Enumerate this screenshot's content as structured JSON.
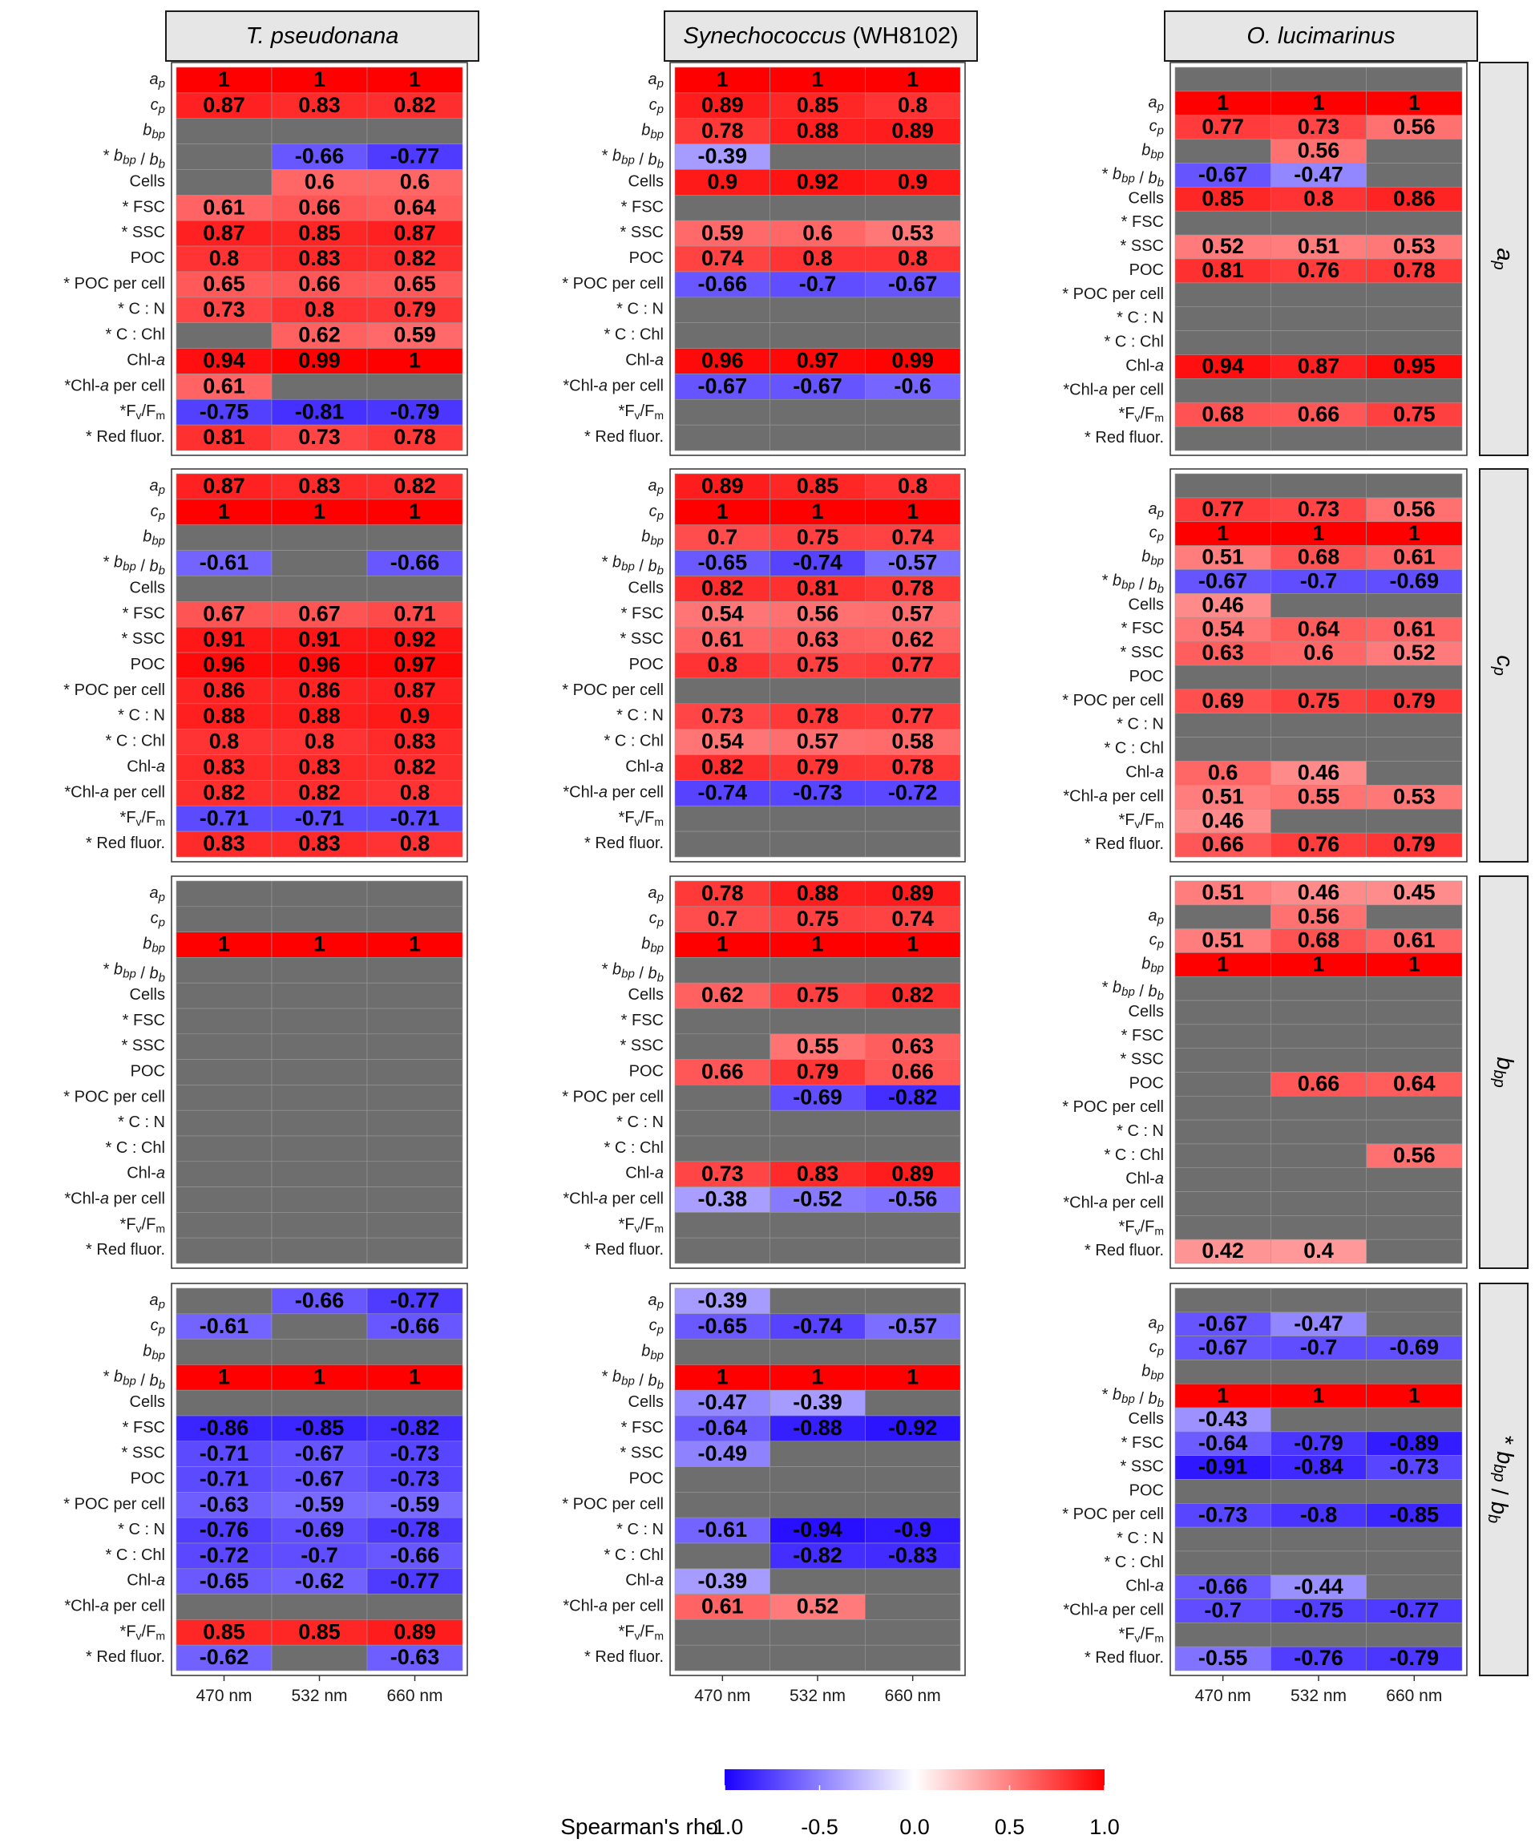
{
  "chart_data": {
    "type": "heatmap",
    "title": "",
    "x_categories": [
      "470 nm",
      "532 nm",
      "660 nm"
    ],
    "columns": [
      {
        "key": "tp",
        "label": "T. pseudonana",
        "italic": true,
        "suffix": ""
      },
      {
        "key": "syn",
        "label": "Synechococcus",
        "italic": true,
        "suffix": "(WH8102)"
      },
      {
        "key": "ol",
        "label": "O. lucimarinus",
        "italic": true,
        "suffix": ""
      }
    ],
    "row_facets": [
      {
        "key": "ap",
        "label": "a_p"
      },
      {
        "key": "cp",
        "label": "c_p"
      },
      {
        "key": "bbp",
        "label": "b_bp"
      },
      {
        "key": "ratio",
        "label": "* b_bp / b_b"
      }
    ],
    "row_labels": [
      "a_p",
      "c_p",
      "b_bp",
      "* b_bp / b_b",
      "Cells",
      "* FSC",
      "* SSC",
      "POC",
      "* POC per cell",
      "* C : N",
      "* C : Chl",
      "Chl-a",
      "*Chl-a per cell",
      "*Fv/Fm",
      "* Red fluor."
    ],
    "ol_row_labels": [
      "",
      "a_p",
      "c_p",
      "b_bp",
      "* b_bp / b_b",
      "Cells",
      "* FSC",
      "* SSC",
      "POC",
      "* POC per cell",
      "* C : N",
      "* C : Chl",
      "Chl-a",
      "*Chl-a per cell",
      "*Fv/Fm",
      "* Red fluor."
    ],
    "legend": {
      "title": "Spearman's rho",
      "ticks": [
        -1.0,
        -0.5,
        0.0,
        0.5,
        1.0
      ],
      "tick_labels": [
        "-1.0",
        "-0.5",
        "0.0",
        "0.5",
        "1.0"
      ],
      "low_color": "#1a00ff",
      "mid_color": "#ffffff",
      "high_color": "#ff0000",
      "na_color": "#6e6e6e",
      "limits": [
        -1,
        1
      ]
    },
    "values": {
      "ap": {
        "tp": [
          [
            1,
            1,
            1
          ],
          [
            0.87,
            0.83,
            0.82
          ],
          [
            null,
            null,
            null
          ],
          [
            null,
            -0.66,
            -0.77
          ],
          [
            null,
            0.6,
            0.6
          ],
          [
            0.61,
            0.66,
            0.64
          ],
          [
            0.87,
            0.85,
            0.87
          ],
          [
            0.8,
            0.83,
            0.82
          ],
          [
            0.65,
            0.66,
            0.65
          ],
          [
            0.73,
            0.8,
            0.79
          ],
          [
            null,
            0.62,
            0.59
          ],
          [
            0.94,
            0.99,
            1
          ],
          [
            0.61,
            null,
            null
          ],
          [
            -0.75,
            -0.81,
            -0.79
          ],
          [
            0.81,
            0.73,
            0.78
          ]
        ],
        "syn": [
          [
            1,
            1,
            1
          ],
          [
            0.89,
            0.85,
            0.8
          ],
          [
            0.78,
            0.88,
            0.89
          ],
          [
            -0.39,
            null,
            null
          ],
          [
            0.9,
            0.92,
            0.9
          ],
          [
            null,
            null,
            null
          ],
          [
            0.59,
            0.6,
            0.53
          ],
          [
            0.74,
            0.8,
            0.8
          ],
          [
            -0.66,
            -0.7,
            -0.67
          ],
          [
            null,
            null,
            null
          ],
          [
            null,
            null,
            null
          ],
          [
            0.96,
            0.97,
            0.99
          ],
          [
            -0.67,
            -0.67,
            -0.6
          ],
          [
            null,
            null,
            null
          ],
          [
            null,
            null,
            null
          ]
        ],
        "ol": [
          [
            null,
            null,
            null
          ],
          [
            1,
            1,
            1
          ],
          [
            0.77,
            0.73,
            0.56
          ],
          [
            null,
            0.56,
            null
          ],
          [
            -0.67,
            -0.47,
            null
          ],
          [
            0.85,
            0.8,
            0.86
          ],
          [
            null,
            null,
            null
          ],
          [
            0.52,
            0.51,
            0.53
          ],
          [
            0.81,
            0.76,
            0.78
          ],
          [
            null,
            null,
            null
          ],
          [
            null,
            null,
            null
          ],
          [
            null,
            null,
            null
          ],
          [
            0.94,
            0.87,
            0.95
          ],
          [
            null,
            null,
            null
          ],
          [
            0.68,
            0.66,
            0.75
          ],
          [
            null,
            null,
            null
          ]
        ]
      },
      "cp": {
        "tp": [
          [
            0.87,
            0.83,
            0.82
          ],
          [
            1,
            1,
            1
          ],
          [
            null,
            null,
            null
          ],
          [
            -0.61,
            null,
            -0.66
          ],
          [
            null,
            null,
            null
          ],
          [
            0.67,
            0.67,
            0.71
          ],
          [
            0.91,
            0.91,
            0.92
          ],
          [
            0.96,
            0.96,
            0.97
          ],
          [
            0.86,
            0.86,
            0.87
          ],
          [
            0.88,
            0.88,
            0.9
          ],
          [
            0.8,
            0.8,
            0.83
          ],
          [
            0.83,
            0.83,
            0.82
          ],
          [
            0.82,
            0.82,
            0.8
          ],
          [
            -0.71,
            -0.71,
            -0.71
          ],
          [
            0.83,
            0.83,
            0.8
          ]
        ],
        "syn": [
          [
            0.89,
            0.85,
            0.8
          ],
          [
            1,
            1,
            1
          ],
          [
            0.7,
            0.75,
            0.74
          ],
          [
            -0.65,
            -0.74,
            -0.57
          ],
          [
            0.82,
            0.81,
            0.78
          ],
          [
            0.54,
            0.56,
            0.57
          ],
          [
            0.61,
            0.63,
            0.62
          ],
          [
            0.8,
            0.75,
            0.77
          ],
          [
            null,
            null,
            null
          ],
          [
            0.73,
            0.78,
            0.77
          ],
          [
            0.54,
            0.57,
            0.58
          ],
          [
            0.82,
            0.79,
            0.78
          ],
          [
            -0.74,
            -0.73,
            -0.72
          ],
          [
            null,
            null,
            null
          ],
          [
            null,
            null,
            null
          ]
        ],
        "ol": [
          [
            null,
            null,
            null
          ],
          [
            0.77,
            0.73,
            0.56
          ],
          [
            1,
            1,
            1
          ],
          [
            0.51,
            0.68,
            0.61
          ],
          [
            -0.67,
            -0.7,
            -0.69
          ],
          [
            0.46,
            null,
            null
          ],
          [
            0.54,
            0.64,
            0.61
          ],
          [
            0.63,
            0.6,
            0.52
          ],
          [
            null,
            null,
            null
          ],
          [
            0.69,
            0.75,
            0.79
          ],
          [
            null,
            null,
            null
          ],
          [
            null,
            null,
            null
          ],
          [
            0.6,
            0.46,
            null
          ],
          [
            0.51,
            0.55,
            0.53
          ],
          [
            0.46,
            null,
            null
          ],
          [
            0.66,
            0.76,
            0.79
          ]
        ]
      },
      "bbp": {
        "tp": [
          [
            null,
            null,
            null
          ],
          [
            null,
            null,
            null
          ],
          [
            1,
            1,
            1
          ],
          [
            null,
            null,
            null
          ],
          [
            null,
            null,
            null
          ],
          [
            null,
            null,
            null
          ],
          [
            null,
            null,
            null
          ],
          [
            null,
            null,
            null
          ],
          [
            null,
            null,
            null
          ],
          [
            null,
            null,
            null
          ],
          [
            null,
            null,
            null
          ],
          [
            null,
            null,
            null
          ],
          [
            null,
            null,
            null
          ],
          [
            null,
            null,
            null
          ],
          [
            null,
            null,
            null
          ]
        ],
        "syn": [
          [
            0.78,
            0.88,
            0.89
          ],
          [
            0.7,
            0.75,
            0.74
          ],
          [
            1,
            1,
            1
          ],
          [
            null,
            null,
            null
          ],
          [
            0.62,
            0.75,
            0.82
          ],
          [
            null,
            null,
            null
          ],
          [
            null,
            0.55,
            0.63
          ],
          [
            0.66,
            0.79,
            0.66
          ],
          [
            null,
            -0.69,
            -0.82
          ],
          [
            null,
            null,
            null
          ],
          [
            null,
            null,
            null
          ],
          [
            0.73,
            0.83,
            0.89
          ],
          [
            -0.38,
            -0.52,
            -0.56
          ],
          [
            null,
            null,
            null
          ],
          [
            null,
            null,
            null
          ]
        ],
        "ol": [
          [
            0.51,
            0.46,
            0.45
          ],
          [
            null,
            0.56,
            null
          ],
          [
            0.51,
            0.68,
            0.61
          ],
          [
            1,
            1,
            1
          ],
          [
            null,
            null,
            null
          ],
          [
            null,
            null,
            null
          ],
          [
            null,
            null,
            null
          ],
          [
            null,
            null,
            null
          ],
          [
            null,
            0.66,
            0.64
          ],
          [
            null,
            null,
            null
          ],
          [
            null,
            null,
            null
          ],
          [
            null,
            null,
            0.56
          ],
          [
            null,
            null,
            null
          ],
          [
            null,
            null,
            null
          ],
          [
            null,
            null,
            null
          ],
          [
            0.42,
            0.4,
            null
          ]
        ]
      },
      "ratio": {
        "tp": [
          [
            null,
            -0.66,
            -0.77
          ],
          [
            -0.61,
            null,
            -0.66
          ],
          [
            null,
            null,
            null
          ],
          [
            1,
            1,
            1
          ],
          [
            null,
            null,
            null
          ],
          [
            -0.86,
            -0.85,
            -0.82
          ],
          [
            -0.71,
            -0.67,
            -0.73
          ],
          [
            -0.71,
            -0.67,
            -0.73
          ],
          [
            -0.63,
            -0.59,
            -0.59
          ],
          [
            -0.76,
            -0.69,
            -0.78
          ],
          [
            -0.72,
            -0.7,
            -0.66
          ],
          [
            -0.65,
            -0.62,
            -0.77
          ],
          [
            null,
            null,
            null
          ],
          [
            0.85,
            0.85,
            0.89
          ],
          [
            -0.62,
            null,
            -0.63
          ]
        ],
        "syn": [
          [
            -0.39,
            null,
            null
          ],
          [
            -0.65,
            -0.74,
            -0.57
          ],
          [
            null,
            null,
            null
          ],
          [
            1,
            1,
            1
          ],
          [
            -0.47,
            -0.39,
            null
          ],
          [
            -0.64,
            -0.88,
            -0.92
          ],
          [
            -0.49,
            null,
            null
          ],
          [
            null,
            null,
            null
          ],
          [
            null,
            null,
            null
          ],
          [
            -0.61,
            -0.94,
            -0.9
          ],
          [
            null,
            -0.82,
            -0.83
          ],
          [
            -0.39,
            null,
            null
          ],
          [
            0.61,
            0.52,
            null
          ],
          [
            null,
            null,
            null
          ],
          [
            null,
            null,
            null
          ]
        ],
        "ol": [
          [
            null,
            null,
            null
          ],
          [
            -0.67,
            -0.47,
            null
          ],
          [
            -0.67,
            -0.7,
            -0.69
          ],
          [
            null,
            null,
            null
          ],
          [
            1,
            1,
            1
          ],
          [
            -0.43,
            null,
            null
          ],
          [
            -0.64,
            -0.79,
            -0.89
          ],
          [
            -0.91,
            -0.84,
            -0.73
          ],
          [
            null,
            null,
            null
          ],
          [
            -0.73,
            -0.8,
            -0.85
          ],
          [
            null,
            null,
            null
          ],
          [
            null,
            null,
            null
          ],
          [
            -0.66,
            -0.44,
            null
          ],
          [
            -0.7,
            -0.75,
            -0.77
          ],
          [
            null,
            null,
            null
          ],
          [
            -0.55,
            -0.76,
            -0.79
          ]
        ]
      }
    }
  }
}
